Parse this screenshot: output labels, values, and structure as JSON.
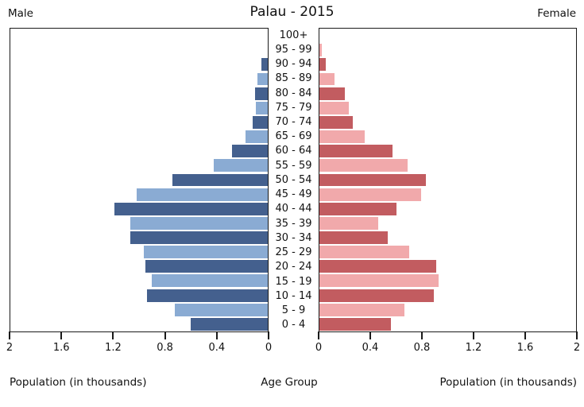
{
  "header": {
    "title": "Palau - 2015",
    "left_label": "Male",
    "right_label": "Female"
  },
  "axes": {
    "male_ticks": [
      "2",
      "1.6",
      "1.2",
      "0.8",
      "0.4",
      "0"
    ],
    "female_ticks": [
      "0",
      "0.4",
      "0.8",
      "1.2",
      "1.6",
      "2"
    ],
    "xlabel_left": "Population (in thousands)",
    "xlabel_center": "Age Group",
    "xlabel_right": "Population (in thousands)"
  },
  "colors": {
    "male_dark": "#44608e",
    "male_light": "#8aabd3",
    "female_dark": "#c25c60",
    "female_light": "#f1a9ab",
    "axis": "#1a1a1a"
  },
  "chart_data": {
    "type": "bar",
    "subtype": "population-pyramid",
    "title": "Palau - 2015",
    "unit": "thousands",
    "xlim": [
      0,
      2
    ],
    "grid": false,
    "legend_position": "none",
    "xlabel": "Population (in thousands)",
    "ylabel": "Age Group",
    "categories": [
      "100+",
      "95 - 99",
      "90 - 94",
      "85 - 89",
      "80 - 84",
      "75 - 79",
      "70 - 74",
      "65 - 69",
      "60 - 64",
      "55 - 59",
      "50 - 54",
      "45 - 49",
      "40 - 44",
      "35 - 39",
      "30 - 34",
      "25 - 29",
      "20 - 24",
      "15 - 19",
      "10 - 14",
      "5 - 9",
      "0 - 4"
    ],
    "series": [
      {
        "name": "Male",
        "values": [
          0.0,
          0.0,
          0.05,
          0.08,
          0.1,
          0.09,
          0.12,
          0.17,
          0.28,
          0.42,
          0.74,
          1.02,
          1.19,
          1.07,
          1.07,
          0.96,
          0.95,
          0.9,
          0.94,
          0.72,
          0.6
        ]
      },
      {
        "name": "Female",
        "values": [
          0.0,
          0.02,
          0.05,
          0.12,
          0.2,
          0.23,
          0.26,
          0.35,
          0.57,
          0.69,
          0.83,
          0.79,
          0.6,
          0.46,
          0.53,
          0.7,
          0.91,
          0.93,
          0.89,
          0.66,
          0.56
        ]
      }
    ]
  }
}
